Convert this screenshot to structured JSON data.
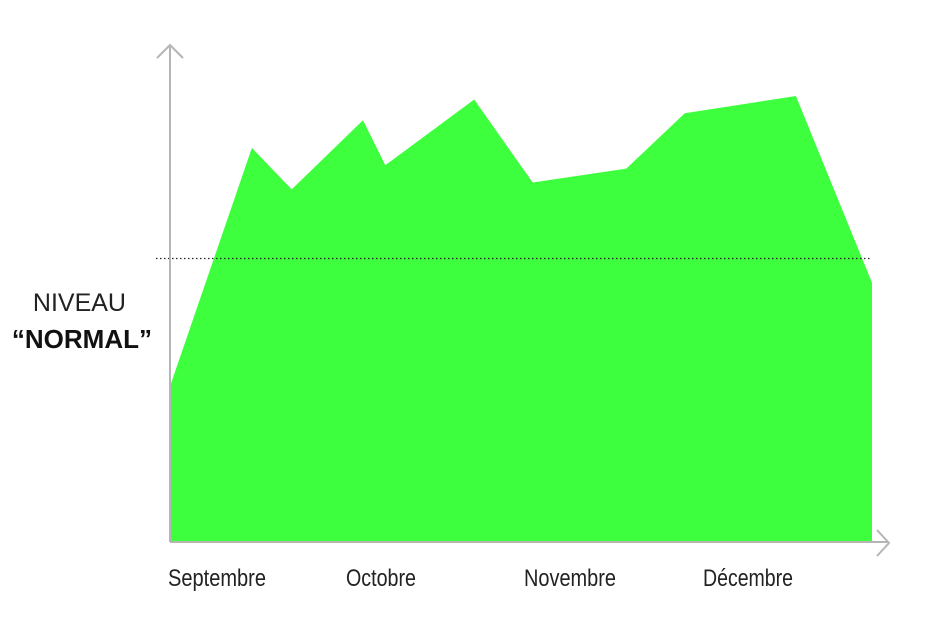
{
  "chart_data": {
    "type": "area",
    "title": "",
    "xlabel": "",
    "ylabel": "",
    "categories": [
      "Septembre",
      "Octobre",
      "Novembre",
      "Décembre"
    ],
    "x": [
      0,
      0.7,
      1.04,
      1.65,
      1.84,
      2.6,
      3.1,
      3.9,
      4.4,
      5.35,
      6.0
    ],
    "values": [
      45,
      114,
      102,
      122,
      109,
      128,
      104,
      108,
      124,
      129,
      75
    ],
    "ylim": [
      0,
      140
    ],
    "xlim": [
      0,
      6
    ],
    "reference_line": {
      "value": 82,
      "label_line1": "NIVEAU",
      "label_line2": "“NORMAL”"
    },
    "grid": false,
    "legend": "none",
    "colors": {
      "area": "#3dff3d",
      "axis": "#b5b5b5",
      "reference": "#222222"
    }
  }
}
